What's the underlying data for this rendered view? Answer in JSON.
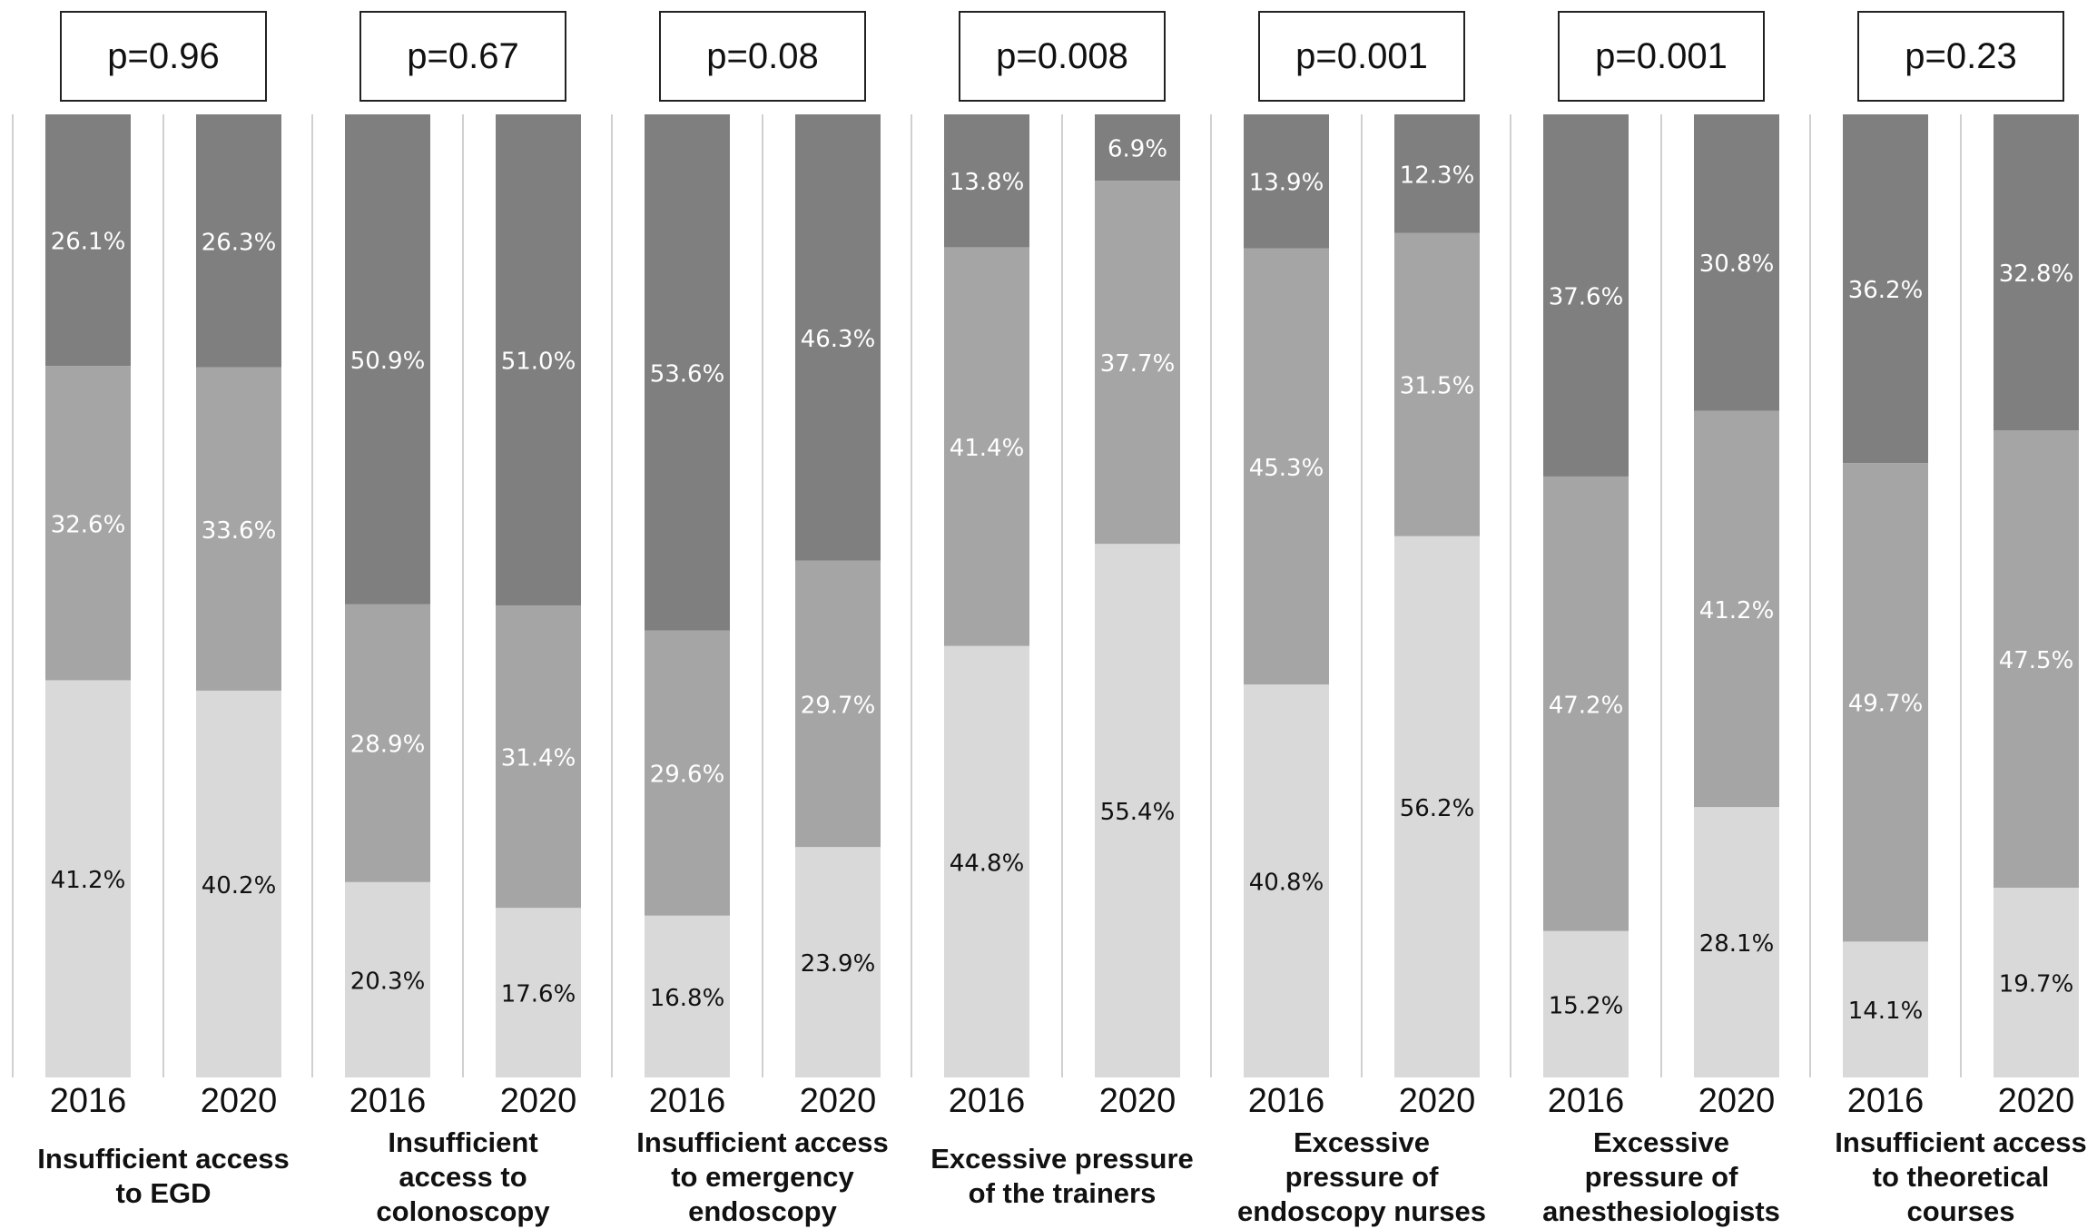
{
  "chart_data": {
    "type": "bar",
    "stacked": true,
    "percent_stacked": true,
    "years": [
      "2016",
      "2020"
    ],
    "colors": {
      "bottom": "#d9d9d9",
      "middle": "#a5a5a5",
      "top": "#7f7f7f",
      "separator": "#d0d0d0"
    },
    "groups": [
      {
        "label": "Insufficient access\nto EGD",
        "p_value": "p=0.96",
        "bars": [
          {
            "year": "2016",
            "values": [
              41.2,
              32.6,
              26.1
            ],
            "labels": [
              "41.2%",
              "32.6%",
              "26.1%"
            ]
          },
          {
            "year": "2020",
            "values": [
              40.2,
              33.6,
              26.3
            ],
            "labels": [
              "40.2%",
              "33.6%",
              "26.3%"
            ]
          }
        ]
      },
      {
        "label": "Insufficient\naccess to\ncolonoscopy",
        "p_value": "p=0.67",
        "bars": [
          {
            "year": "2016",
            "values": [
              20.3,
              28.9,
              50.9
            ],
            "labels": [
              "20.3%",
              "28.9%",
              "50.9%"
            ]
          },
          {
            "year": "2020",
            "values": [
              17.6,
              31.4,
              51.0
            ],
            "labels": [
              "17.6%",
              "31.4%",
              "51.0%"
            ]
          }
        ]
      },
      {
        "label": "Insufficient access\nto emergency\nendoscopy",
        "p_value": "p=0.08",
        "bars": [
          {
            "year": "2016",
            "values": [
              16.8,
              29.6,
              53.6
            ],
            "labels": [
              "16.8%",
              "29.6%",
              "53.6%"
            ]
          },
          {
            "year": "2020",
            "values": [
              23.9,
              29.7,
              46.3
            ],
            "labels": [
              "23.9%",
              "29.7%",
              "46.3%"
            ]
          }
        ]
      },
      {
        "label": "Excessive pressure\nof the trainers",
        "p_value": "p=0.008",
        "bars": [
          {
            "year": "2016",
            "values": [
              44.8,
              41.4,
              13.8
            ],
            "labels": [
              "44.8%",
              "41.4%",
              "13.8%"
            ]
          },
          {
            "year": "2020",
            "values": [
              55.4,
              37.7,
              6.9
            ],
            "labels": [
              "55.4%",
              "37.7%",
              "6.9%"
            ]
          }
        ]
      },
      {
        "label": "Excessive\npressure of\nendoscopy nurses",
        "p_value": "p=0.001",
        "bars": [
          {
            "year": "2016",
            "values": [
              40.8,
              45.3,
              13.9
            ],
            "labels": [
              "40.8%",
              "45.3%",
              "13.9%"
            ]
          },
          {
            "year": "2020",
            "values": [
              56.2,
              31.5,
              12.3
            ],
            "labels": [
              "56.2%",
              "31.5%",
              "12.3%"
            ]
          }
        ]
      },
      {
        "label": "Excessive\npressure of\nanesthesiologists",
        "p_value": "p=0.001",
        "bars": [
          {
            "year": "2016",
            "values": [
              15.2,
              47.2,
              37.6
            ],
            "labels": [
              "15.2%",
              "47.2%",
              "37.6%"
            ]
          },
          {
            "year": "2020",
            "values": [
              28.1,
              41.2,
              30.8
            ],
            "labels": [
              "28.1%",
              "41.2%",
              "30.8%"
            ]
          }
        ]
      },
      {
        "label": "Insufficient access\nto theoretical\ncourses",
        "p_value": "p=0.23",
        "bars": [
          {
            "year": "2016",
            "values": [
              14.1,
              49.7,
              36.2
            ],
            "labels": [
              "14.1%",
              "49.7%",
              "36.2%"
            ]
          },
          {
            "year": "2020",
            "values": [
              19.7,
              47.5,
              32.8
            ],
            "labels": [
              "19.7%",
              "47.5%",
              "32.8%"
            ]
          }
        ]
      }
    ]
  }
}
